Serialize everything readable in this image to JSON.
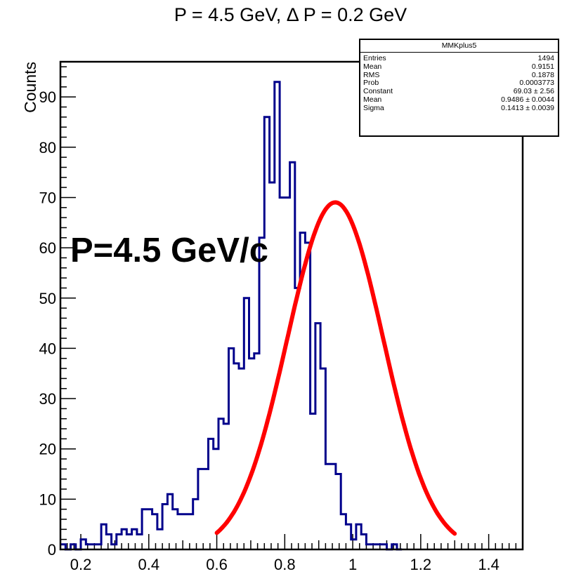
{
  "chart_data": {
    "type": "histogram",
    "title": "P = 4.5 GeV, Δ P = 0.2 GeV",
    "xlabel": "",
    "ylabel": "Counts",
    "annotation": "P=4.5 GeV/c",
    "xlim": [
      0.14,
      1.5
    ],
    "ylim": [
      0,
      97
    ],
    "xticks": [
      0.2,
      0.4,
      0.6,
      0.8,
      1,
      1.2,
      1.4
    ],
    "yticks": [
      0,
      10,
      20,
      30,
      40,
      50,
      60,
      70,
      80,
      90
    ],
    "xtick_labels": [
      "0.2",
      "0.4",
      "0.6",
      "0.8",
      "1",
      "1.2",
      "1.4"
    ],
    "ytick_labels": [
      "0",
      "10",
      "20",
      "30",
      "40",
      "50",
      "60",
      "70",
      "80",
      "90"
    ],
    "bin_width": 0.015,
    "bin_start": 0.14,
    "counts": [
      1,
      0,
      1,
      0,
      2,
      1,
      1,
      1,
      5,
      3,
      1,
      3,
      4,
      3,
      4,
      3,
      8,
      8,
      7,
      4,
      9,
      11,
      8,
      7,
      7,
      7,
      10,
      16,
      16,
      22,
      20,
      26,
      25,
      40,
      37,
      36,
      50,
      38,
      39,
      62,
      86,
      73,
      93,
      70,
      70,
      77,
      52,
      63,
      61,
      27,
      45,
      36,
      17,
      17,
      15,
      7,
      5,
      2,
      5,
      3,
      1,
      1,
      1,
      1,
      0,
      1,
      0
    ],
    "fit": {
      "type": "gaussian",
      "constant": 69.03,
      "mean": 0.9486,
      "sigma": 0.1413,
      "range": [
        0.6,
        1.3
      ]
    },
    "colors": {
      "histogram": "#00008b",
      "fit": "#ff0000",
      "axis": "#000000"
    },
    "stats_box": {
      "title": "MMKplus5",
      "rows": [
        {
          "label": "Entries",
          "value": "1494"
        },
        {
          "label": "Mean",
          "value": "0.9151"
        },
        {
          "label": "RMS",
          "value": "0.1878"
        },
        {
          "label": "Prob",
          "value": "0.0003773"
        },
        {
          "label": "Constant",
          "value": "69.03 ± 2.56"
        },
        {
          "label": "Mean",
          "value": "0.9486 ± 0.0044"
        },
        {
          "label": "Sigma",
          "value": "0.1413 ± 0.0039"
        }
      ]
    }
  }
}
